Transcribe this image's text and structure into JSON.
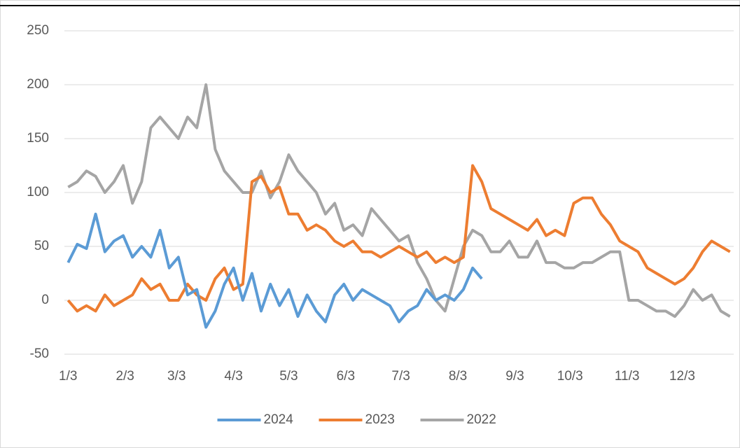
{
  "chart_data": {
    "type": "line",
    "x": [
      3,
      8,
      13,
      18,
      23,
      28,
      33,
      38,
      43,
      48,
      53,
      58,
      63,
      68,
      73,
      78,
      83,
      88,
      93,
      98,
      103,
      108,
      113,
      118,
      123,
      128,
      133,
      138,
      143,
      148,
      153,
      158,
      163,
      168,
      173,
      178,
      183,
      188,
      193,
      198,
      203,
      208,
      213,
      218,
      223,
      228,
      233,
      238,
      243,
      248,
      253,
      258,
      263,
      268,
      273,
      278,
      283,
      288,
      293,
      298,
      303,
      308,
      313,
      318,
      323,
      328,
      333,
      338,
      343,
      348,
      353,
      358,
      363
    ],
    "series": [
      {
        "name": "2024",
        "color": "#5b9bd5",
        "values": [
          35,
          52,
          48,
          80,
          45,
          55,
          60,
          40,
          50,
          40,
          65,
          30,
          40,
          5,
          10,
          -25,
          -10,
          15,
          30,
          0,
          25,
          -10,
          15,
          -5,
          10,
          -15,
          5,
          -10,
          -20,
          5,
          15,
          0,
          10,
          5,
          0,
          -5,
          -20,
          -10,
          -5,
          10,
          0,
          5,
          0,
          10,
          30,
          20,
          null,
          null,
          null,
          null,
          null,
          null,
          null,
          null,
          null,
          null,
          null,
          null,
          null,
          null,
          null,
          null,
          null,
          null,
          null,
          null,
          null,
          null,
          null,
          null,
          null,
          null,
          null
        ]
      },
      {
        "name": "2023",
        "color": "#ed7d31",
        "values": [
          0,
          -10,
          -5,
          -10,
          5,
          -5,
          0,
          5,
          20,
          10,
          15,
          0,
          0,
          15,
          5,
          0,
          20,
          30,
          10,
          15,
          110,
          115,
          100,
          105,
          80,
          80,
          65,
          70,
          65,
          55,
          50,
          55,
          45,
          45,
          40,
          45,
          50,
          45,
          40,
          45,
          35,
          40,
          35,
          40,
          125,
          110,
          85,
          80,
          75,
          70,
          65,
          75,
          60,
          65,
          60,
          90,
          95,
          95,
          80,
          70,
          55,
          50,
          45,
          30,
          25,
          20,
          15,
          20,
          30,
          45,
          55,
          50,
          45
        ]
      },
      {
        "name": "2022",
        "color": "#a5a5a5",
        "values": [
          105,
          110,
          120,
          115,
          100,
          110,
          125,
          90,
          110,
          160,
          170,
          160,
          150,
          170,
          160,
          200,
          140,
          120,
          110,
          100,
          100,
          120,
          95,
          110,
          135,
          120,
          110,
          100,
          80,
          90,
          65,
          70,
          60,
          85,
          75,
          65,
          55,
          60,
          35,
          20,
          0,
          -10,
          20,
          50,
          65,
          60,
          45,
          45,
          55,
          40,
          40,
          55,
          35,
          35,
          30,
          30,
          35,
          35,
          40,
          45,
          45,
          0,
          0,
          -5,
          -10,
          -10,
          -15,
          -5,
          10,
          0,
          5,
          -10,
          -15
        ]
      }
    ],
    "xlim": [
      1,
      365
    ],
    "xticks": [
      {
        "value": 3,
        "label": "1/3"
      },
      {
        "value": 34,
        "label": "2/3"
      },
      {
        "value": 62,
        "label": "3/3"
      },
      {
        "value": 93,
        "label": "4/3"
      },
      {
        "value": 123,
        "label": "5/3"
      },
      {
        "value": 154,
        "label": "6/3"
      },
      {
        "value": 184,
        "label": "7/3"
      },
      {
        "value": 215,
        "label": "8/3"
      },
      {
        "value": 246,
        "label": "9/3"
      },
      {
        "value": 276,
        "label": "10/3"
      },
      {
        "value": 307,
        "label": "11/3"
      },
      {
        "value": 337,
        "label": "12/3"
      }
    ],
    "ylim": [
      -50,
      250
    ],
    "yticks": [
      -50,
      0,
      50,
      100,
      150,
      200,
      250
    ],
    "grid": true,
    "legend": "bottom"
  }
}
